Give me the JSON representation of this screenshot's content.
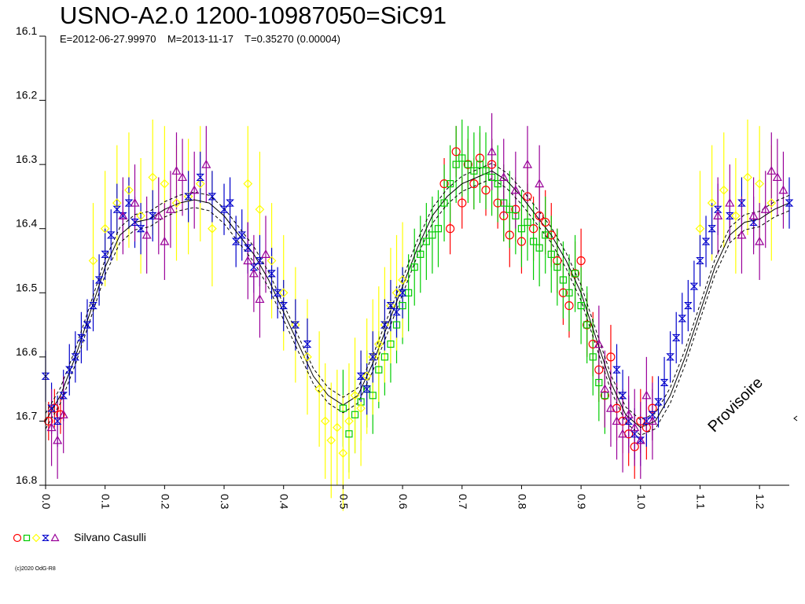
{
  "title": "USNO-A2.0 1200-10987050=SiC91",
  "subtitle": "E=2012-06-27.99970    M=2013-11-17    T=0.35270 (0.00004)",
  "legend": {
    "label": "Silvano Casulli"
  },
  "copyright": "(c)2020 OdG-R8",
  "watermark": "Provisoire",
  "chart_data": {
    "type": "scatter",
    "title": "USNO-A2.0 1200-10987050=SiC91",
    "xlabel": "",
    "ylabel": "",
    "xlim": [
      0.0,
      1.25
    ],
    "ylim": [
      16.1,
      16.8
    ],
    "y_inverted": true,
    "x_ticks": [
      "0.0",
      "0.1",
      "0.2",
      "0.3",
      "0.4",
      "0.5",
      "0.6",
      "0.7",
      "0.8",
      "0.9",
      "1.0",
      "1.1",
      "1.2"
    ],
    "y_ticks": [
      "16.1",
      "16.2",
      "16.3",
      "16.4",
      "16.5",
      "16.6",
      "16.7",
      "16.8"
    ],
    "grid": false,
    "legend_placement": "bottom-left",
    "fit_curve": {
      "phase": [
        0.0,
        0.025,
        0.05,
        0.075,
        0.1,
        0.125,
        0.15,
        0.175,
        0.2,
        0.225,
        0.25,
        0.275,
        0.3,
        0.325,
        0.35,
        0.375,
        0.4,
        0.425,
        0.45,
        0.475,
        0.5,
        0.525,
        0.55,
        0.575,
        0.6,
        0.625,
        0.65,
        0.675,
        0.7,
        0.725,
        0.75,
        0.775,
        0.8,
        0.825,
        0.85,
        0.875,
        0.9,
        0.925,
        0.95,
        0.975,
        1.0,
        1.025,
        1.05,
        1.075,
        1.1,
        1.125,
        1.15,
        1.175,
        1.2,
        1.225,
        1.25
      ],
      "mag": [
        16.7,
        16.66,
        16.6,
        16.53,
        16.46,
        16.41,
        16.39,
        16.385,
        16.37,
        16.36,
        16.355,
        16.36,
        16.38,
        16.41,
        16.44,
        16.48,
        16.53,
        16.58,
        16.63,
        16.66,
        16.675,
        16.66,
        16.61,
        16.55,
        16.49,
        16.43,
        16.38,
        16.35,
        16.33,
        16.32,
        16.31,
        16.325,
        16.35,
        16.38,
        16.41,
        16.45,
        16.5,
        16.57,
        16.64,
        16.69,
        16.71,
        16.7,
        16.66,
        16.6,
        16.53,
        16.46,
        16.41,
        16.39,
        16.385,
        16.37,
        16.36
      ],
      "band": 0.012
    },
    "series": [
      {
        "name": "Silvano Casulli",
        "symbol": "circle",
        "color": "#ff0000",
        "x": [
          0.005,
          0.015,
          0.025,
          0.67,
          0.68,
          0.69,
          0.7,
          0.71,
          0.72,
          0.73,
          0.74,
          0.75,
          0.76,
          0.77,
          0.78,
          0.79,
          0.8,
          0.81,
          0.82,
          0.83,
          0.84,
          0.85,
          0.86,
          0.87,
          0.88,
          0.89,
          0.9,
          0.91,
          0.92,
          0.93,
          0.94,
          0.95,
          0.96,
          0.97,
          0.98,
          0.99,
          1.0,
          1.01,
          1.02
        ],
        "y": [
          16.7,
          16.68,
          16.69,
          16.33,
          16.4,
          16.28,
          16.36,
          16.3,
          16.33,
          16.29,
          16.34,
          16.3,
          16.36,
          16.38,
          16.41,
          16.37,
          16.42,
          16.35,
          16.4,
          16.38,
          16.39,
          16.41,
          16.45,
          16.5,
          16.52,
          16.47,
          16.45,
          16.55,
          16.58,
          16.62,
          16.66,
          16.6,
          16.68,
          16.7,
          16.72,
          16.74,
          16.7,
          16.71,
          16.68
        ],
        "err": [
          0.03,
          0.03,
          0.03,
          0.04,
          0.04,
          0.04,
          0.04,
          0.04,
          0.04,
          0.04,
          0.04,
          0.04,
          0.04,
          0.04,
          0.05,
          0.05,
          0.05,
          0.05,
          0.05,
          0.05,
          0.05,
          0.05,
          0.05,
          0.05,
          0.05,
          0.05,
          0.05,
          0.05,
          0.05,
          0.05,
          0.05,
          0.05,
          0.05,
          0.05,
          0.05,
          0.05,
          0.05,
          0.05,
          0.05
        ]
      },
      {
        "name": "Silvano Casulli",
        "symbol": "square",
        "color": "#00cc00",
        "x": [
          0.5,
          0.51,
          0.52,
          0.53,
          0.54,
          0.55,
          0.56,
          0.57,
          0.58,
          0.59,
          0.6,
          0.61,
          0.62,
          0.63,
          0.64,
          0.65,
          0.66,
          0.67,
          0.68,
          0.69,
          0.7,
          0.71,
          0.72,
          0.73,
          0.74,
          0.75,
          0.76,
          0.77,
          0.78,
          0.79,
          0.8,
          0.81,
          0.82,
          0.83,
          0.84,
          0.85,
          0.86,
          0.87,
          0.88,
          0.89,
          0.9,
          0.91,
          0.92,
          0.93,
          0.94
        ],
        "y": [
          16.68,
          16.72,
          16.69,
          16.67,
          16.65,
          16.66,
          16.62,
          16.6,
          16.58,
          16.55,
          16.52,
          16.5,
          16.46,
          16.44,
          16.42,
          16.41,
          16.4,
          16.36,
          16.33,
          16.3,
          16.29,
          16.3,
          16.31,
          16.3,
          16.31,
          16.32,
          16.33,
          16.36,
          16.37,
          16.38,
          16.4,
          16.39,
          16.42,
          16.43,
          16.41,
          16.44,
          16.46,
          16.48,
          16.5,
          16.47,
          16.52,
          16.55,
          16.6,
          16.64,
          16.66
        ],
        "err": [
          0.06,
          0.06,
          0.06,
          0.06,
          0.06,
          0.06,
          0.06,
          0.06,
          0.06,
          0.06,
          0.06,
          0.06,
          0.06,
          0.06,
          0.06,
          0.06,
          0.06,
          0.06,
          0.06,
          0.06,
          0.06,
          0.06,
          0.06,
          0.06,
          0.06,
          0.06,
          0.06,
          0.06,
          0.06,
          0.06,
          0.06,
          0.06,
          0.06,
          0.06,
          0.06,
          0.06,
          0.06,
          0.06,
          0.06,
          0.06,
          0.06,
          0.06,
          0.06,
          0.06,
          0.06
        ]
      },
      {
        "name": "Silvano Casulli",
        "symbol": "diamond",
        "color": "#ffff00",
        "x": [
          0.08,
          0.1,
          0.12,
          0.14,
          0.16,
          0.18,
          0.2,
          0.22,
          0.24,
          0.26,
          0.28,
          0.34,
          0.36,
          0.38,
          0.4,
          0.42,
          0.44,
          0.46,
          0.47,
          0.48,
          0.49,
          0.5,
          0.51,
          0.52,
          0.53,
          0.54,
          0.55,
          0.56,
          0.57,
          0.58,
          0.59,
          0.6,
          1.1,
          1.12,
          1.14,
          1.16,
          1.18,
          1.2,
          1.22
        ],
        "y": [
          16.45,
          16.4,
          16.36,
          16.34,
          16.38,
          16.32,
          16.33,
          16.36,
          16.35,
          16.33,
          16.4,
          16.33,
          16.37,
          16.45,
          16.5,
          16.55,
          16.6,
          16.65,
          16.7,
          16.73,
          16.71,
          16.75,
          16.7,
          16.66,
          16.68,
          16.63,
          16.6,
          16.58,
          16.55,
          16.52,
          16.5,
          16.48,
          16.4,
          16.36,
          16.34,
          16.38,
          16.32,
          16.33,
          16.36
        ],
        "err": [
          0.09,
          0.09,
          0.09,
          0.09,
          0.09,
          0.09,
          0.09,
          0.09,
          0.09,
          0.09,
          0.09,
          0.09,
          0.09,
          0.09,
          0.09,
          0.09,
          0.09,
          0.09,
          0.09,
          0.09,
          0.09,
          0.09,
          0.09,
          0.09,
          0.09,
          0.09,
          0.09,
          0.09,
          0.09,
          0.09,
          0.09,
          0.09,
          0.09,
          0.09,
          0.09,
          0.09,
          0.09,
          0.09,
          0.09
        ]
      },
      {
        "name": "Silvano Casulli",
        "symbol": "star",
        "color": "#0000cc",
        "x": [
          0.0,
          0.01,
          0.02,
          0.03,
          0.04,
          0.05,
          0.06,
          0.07,
          0.08,
          0.09,
          0.1,
          0.11,
          0.12,
          0.13,
          0.14,
          0.15,
          0.16,
          0.18,
          0.24,
          0.26,
          0.28,
          0.3,
          0.31,
          0.32,
          0.33,
          0.34,
          0.35,
          0.36,
          0.38,
          0.39,
          0.4,
          0.42,
          0.44,
          0.53,
          0.54,
          0.55,
          0.57,
          0.58,
          0.59,
          0.6,
          0.96,
          0.97,
          0.98,
          0.99,
          1.0,
          1.01,
          1.02,
          1.03,
          1.04,
          1.05,
          1.06,
          1.07,
          1.08,
          1.09,
          1.1,
          1.11,
          1.12,
          1.13,
          1.15,
          1.17,
          1.19,
          1.25
        ],
        "y": [
          16.63,
          16.68,
          16.7,
          16.66,
          16.62,
          16.6,
          16.57,
          16.55,
          16.52,
          16.48,
          16.44,
          16.41,
          16.37,
          16.38,
          16.36,
          16.39,
          16.4,
          16.38,
          16.35,
          16.32,
          16.35,
          16.37,
          16.36,
          16.42,
          16.41,
          16.43,
          16.46,
          16.45,
          16.47,
          16.5,
          16.52,
          16.55,
          16.58,
          16.63,
          16.65,
          16.6,
          16.55,
          16.52,
          16.53,
          16.5,
          16.62,
          16.66,
          16.7,
          16.72,
          16.73,
          16.7,
          16.69,
          16.67,
          16.64,
          16.6,
          16.57,
          16.54,
          16.52,
          16.49,
          16.45,
          16.42,
          16.4,
          16.37,
          16.38,
          16.36,
          16.39,
          16.36
        ],
        "err": [
          0.04,
          0.04,
          0.04,
          0.04,
          0.04,
          0.04,
          0.04,
          0.04,
          0.04,
          0.04,
          0.04,
          0.04,
          0.04,
          0.04,
          0.04,
          0.04,
          0.04,
          0.04,
          0.04,
          0.04,
          0.04,
          0.04,
          0.04,
          0.04,
          0.04,
          0.04,
          0.04,
          0.04,
          0.04,
          0.04,
          0.04,
          0.04,
          0.04,
          0.04,
          0.04,
          0.04,
          0.04,
          0.04,
          0.04,
          0.04,
          0.04,
          0.04,
          0.04,
          0.04,
          0.04,
          0.04,
          0.04,
          0.04,
          0.04,
          0.04,
          0.04,
          0.04,
          0.04,
          0.04,
          0.04,
          0.04,
          0.04,
          0.04,
          0.04,
          0.04,
          0.04,
          0.04
        ]
      },
      {
        "name": "Silvano Casulli",
        "symbol": "triangle",
        "color": "#990099",
        "x": [
          0.01,
          0.02,
          0.03,
          0.13,
          0.15,
          0.17,
          0.19,
          0.2,
          0.21,
          0.22,
          0.23,
          0.25,
          0.27,
          0.34,
          0.35,
          0.36,
          0.37,
          0.75,
          0.77,
          0.79,
          0.81,
          0.83,
          0.93,
          0.94,
          0.95,
          0.96,
          0.97,
          0.98,
          0.99,
          1.0,
          1.01,
          1.02,
          1.13,
          1.15,
          1.17,
          1.19,
          1.2,
          1.21,
          1.22,
          1.23,
          1.24
        ],
        "y": [
          16.71,
          16.73,
          16.69,
          16.38,
          16.36,
          16.41,
          16.38,
          16.42,
          16.37,
          16.31,
          16.32,
          16.34,
          16.3,
          16.45,
          16.47,
          16.51,
          16.44,
          16.28,
          16.32,
          16.34,
          16.3,
          16.33,
          16.58,
          16.65,
          16.68,
          16.7,
          16.72,
          16.69,
          16.71,
          16.73,
          16.66,
          16.7,
          16.38,
          16.36,
          16.41,
          16.38,
          16.42,
          16.37,
          16.31,
          16.32,
          16.34
        ],
        "err": [
          0.06,
          0.06,
          0.06,
          0.06,
          0.06,
          0.06,
          0.06,
          0.06,
          0.06,
          0.06,
          0.06,
          0.06,
          0.06,
          0.06,
          0.06,
          0.06,
          0.06,
          0.06,
          0.06,
          0.06,
          0.06,
          0.06,
          0.06,
          0.06,
          0.06,
          0.06,
          0.06,
          0.06,
          0.06,
          0.06,
          0.06,
          0.06,
          0.06,
          0.06,
          0.06,
          0.06,
          0.06,
          0.06,
          0.06,
          0.06,
          0.06
        ]
      }
    ]
  }
}
